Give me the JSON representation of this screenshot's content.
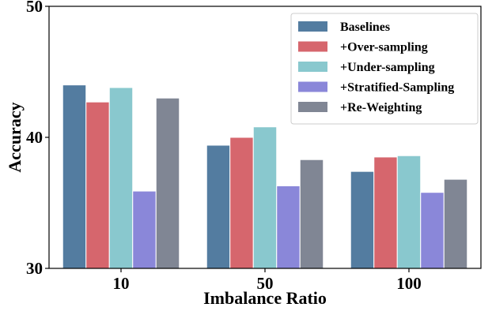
{
  "chart_data": {
    "type": "bar",
    "title": "",
    "xlabel": "Imbalance Ratio",
    "ylabel": "Accuracy",
    "categories": [
      "10",
      "50",
      "100"
    ],
    "ylim": [
      30,
      50
    ],
    "yticks": [
      "30",
      "40",
      "50"
    ],
    "grid": false,
    "legend_position": "top-right",
    "series": [
      {
        "name": "Baselines",
        "color": "#537ca0",
        "values": [
          44.0,
          39.4,
          37.4
        ]
      },
      {
        "name": "+Over-sampling",
        "color": "#d6666d",
        "values": [
          42.7,
          40.0,
          38.5
        ]
      },
      {
        "name": "+Under-sampling",
        "color": "#89c8ce",
        "values": [
          43.8,
          40.8,
          38.6
        ]
      },
      {
        "name": "+Stratified-Sampling",
        "color": "#8a87d9",
        "values": [
          35.9,
          36.3,
          35.8
        ]
      },
      {
        "name": "+Re-Weighting",
        "color": "#808694",
        "values": [
          43.0,
          38.3,
          36.8
        ]
      }
    ]
  }
}
